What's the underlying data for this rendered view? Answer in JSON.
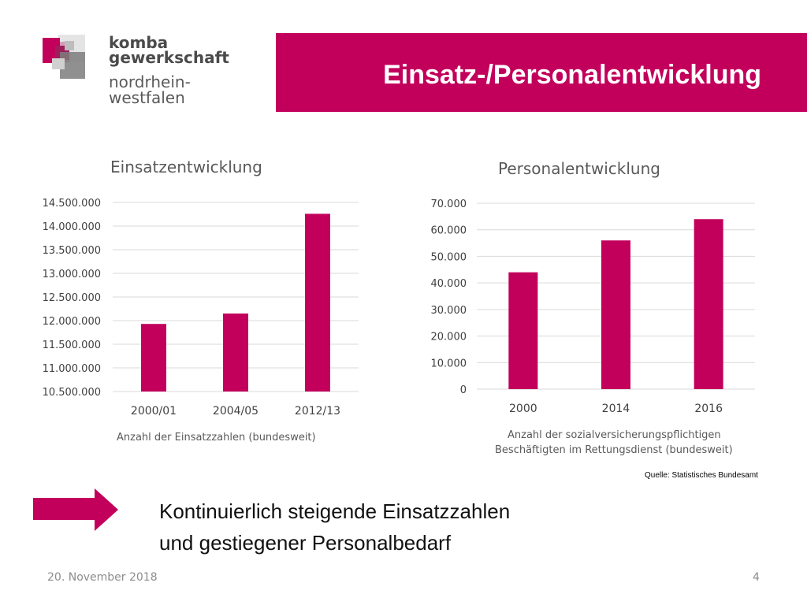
{
  "logo": {
    "line1": "komba",
    "line2": "gewerkschaft",
    "line3": "nordrhein-",
    "line4": "westfalen"
  },
  "header": {
    "title": "Einsatz-/Personalentwicklung"
  },
  "colors": {
    "accent": "#c2005c",
    "grid": "#d9d9d9",
    "text": "#595959"
  },
  "chart_data": [
    {
      "type": "bar",
      "title": "Einsatzentwicklung",
      "categories": [
        "2000/01",
        "2004/05",
        "2012/13"
      ],
      "values": [
        11930000,
        12150000,
        14260000
      ],
      "ylim": [
        10500000,
        14500000
      ],
      "yticks": [
        "10.500.000",
        "11.000.000",
        "11.500.000",
        "12.000.000",
        "12.500.000",
        "13.000.000",
        "13.500.000",
        "14.000.000",
        "14.500.000"
      ],
      "caption": "Anzahl der Einsatzzahlen (bundesweit)",
      "grid": true
    },
    {
      "type": "bar",
      "title": "Personalentwicklung",
      "categories": [
        "2000",
        "2014",
        "2016"
      ],
      "values": [
        44000,
        56000,
        64000
      ],
      "ylim": [
        0,
        70000
      ],
      "yticks": [
        "0",
        "10.000",
        "20.000",
        "30.000",
        "40.000",
        "50.000",
        "60.000",
        "70.000"
      ],
      "caption_line1": "Anzahl der sozialversicherungspflichtigen",
      "caption_line2": "Beschäftigten im Rettungsdienst (bundesweit)",
      "grid": true
    }
  ],
  "source": "Quelle: Statistisches Bundesamt",
  "conclusion": {
    "line1": "Kontinuierlich steigende Einsatzzahlen",
    "line2": "und gestiegener Personalbedarf"
  },
  "footer": {
    "date": "20. November 2018",
    "page": "4"
  }
}
